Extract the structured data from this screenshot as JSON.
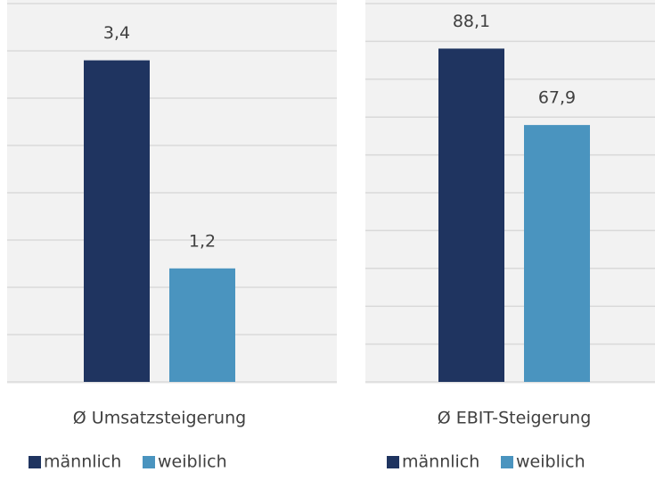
{
  "chart_data": [
    {
      "type": "bar",
      "categories": [
        "Ø Umsatzsteigerung"
      ],
      "series": [
        {
          "name": "männlich",
          "color": "#1f3460",
          "values": [
            3.4
          ],
          "value_labels": [
            "3,4"
          ]
        },
        {
          "name": "weiblich",
          "color": "#4a94bf",
          "values": [
            1.2
          ],
          "value_labels": [
            "1,2"
          ]
        }
      ],
      "ylim": [
        0,
        4
      ],
      "yticks": [
        0,
        0.5,
        1,
        1.5,
        2,
        2.5,
        3,
        3.5,
        4
      ],
      "grid": true
    },
    {
      "type": "bar",
      "categories": [
        "Ø EBIT-Steigerung"
      ],
      "series": [
        {
          "name": "männlich",
          "color": "#1f3460",
          "values": [
            88.1
          ],
          "value_labels": [
            "88,1"
          ]
        },
        {
          "name": "weiblich",
          "color": "#4a94bf",
          "values": [
            67.9
          ],
          "value_labels": [
            "67,9"
          ]
        }
      ],
      "ylim": [
        0,
        100
      ],
      "yticks": [
        0,
        10,
        20,
        30,
        40,
        50,
        60,
        70,
        80,
        90,
        100
      ],
      "grid": true
    }
  ]
}
